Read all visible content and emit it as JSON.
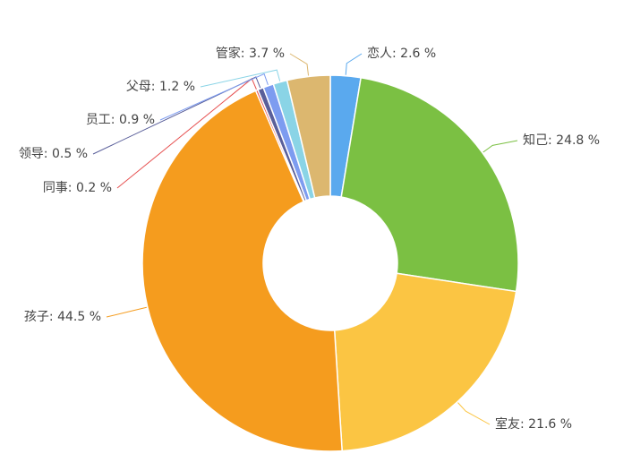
{
  "chart_data": {
    "type": "pie",
    "categories": [
      "恋人",
      "知己",
      "室友",
      "孩子",
      "同事",
      "领导",
      "员工",
      "父母",
      "管家"
    ],
    "values": [
      2.6,
      24.8,
      21.6,
      44.5,
      0.2,
      0.5,
      0.9,
      1.2,
      3.7
    ],
    "value_labels": [
      "恋人: 2.6 %",
      "知己: 24.8 %",
      "室友: 21.6 %",
      "孩子: 44.5 %",
      "同事: 0.2 %",
      "领导: 0.5 %",
      "员工: 0.9 %",
      "父母: 1.2 %",
      "管家: 3.7 %"
    ],
    "colors": [
      "#5aa9ee",
      "#7bc043",
      "#fbc543",
      "#f59c1e",
      "#e65050",
      "#5a5f9a",
      "#7d9cf0",
      "#8ad4e6",
      "#dcb76f"
    ]
  }
}
